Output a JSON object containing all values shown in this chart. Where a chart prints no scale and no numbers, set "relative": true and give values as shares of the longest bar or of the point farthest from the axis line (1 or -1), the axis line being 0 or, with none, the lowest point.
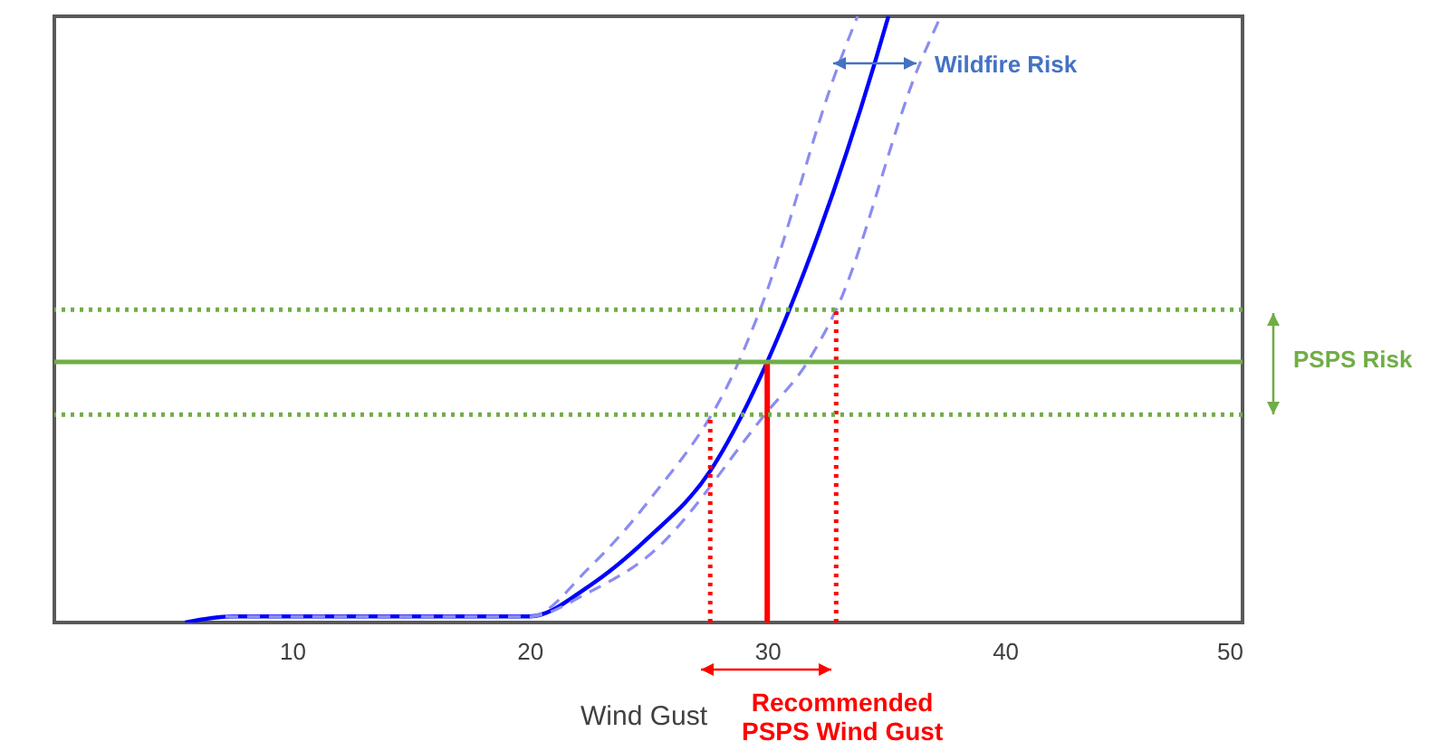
{
  "chart_data": {
    "type": "line",
    "xlabel": "Wind Gust",
    "relative": true,
    "xlim": [
      0,
      50
    ],
    "xticks": [
      10,
      20,
      30,
      40,
      50
    ],
    "grid": false,
    "marker": "none",
    "series": [
      {
        "color": "#0000ff",
        "line_style": "solid",
        "x": [
          5.5,
          7.5,
          10,
          15,
          20,
          22.5,
          25,
          27.6,
          30,
          30.9,
          34.5,
          35.1
        ],
        "values": [
          0,
          0.01,
          0.01,
          0.01,
          0.01,
          0.06,
          0.14,
          0.25,
          0.43,
          0.513,
          0.92,
          1
        ]
      },
      {
        "color": "#8c8cf0",
        "line_style": "dashed",
        "x": [
          7.2,
          10,
          15,
          20,
          22.5,
          25,
          28.8,
          29.7,
          33.0,
          33.8
        ],
        "values": [
          0.01,
          0.01,
          0.01,
          0.01,
          0.09,
          0.2,
          0.43,
          0.516,
          0.92,
          1
        ]
      },
      {
        "color": "#8c8cf0",
        "line_style": "dashed",
        "x": [
          7.2,
          10,
          15,
          20,
          22.5,
          25,
          29.9,
          31.7,
          32.9,
          36.4,
          37.3
        ],
        "values": [
          0.01,
          0.01,
          0.01,
          0.01,
          0.05,
          0.11,
          0.343,
          0.43,
          0.516,
          0.92,
          1
        ]
      },
      {
        "color": "#ff0000",
        "line_style": "solid",
        "x": [
          30,
          30
        ],
        "values": [
          0,
          0.43
        ]
      },
      {
        "color": "#ff0000",
        "line_style": "dotted",
        "x": [
          27.6,
          27.6
        ],
        "values": [
          0,
          0.343
        ]
      },
      {
        "color": "#ff0000",
        "line_style": "dotted",
        "x": [
          32.9,
          32.9
        ],
        "values": [
          0,
          0.516
        ]
      }
    ],
    "ref_lines": [
      {
        "axis": "y",
        "value": 0.43,
        "color": "#70ad47",
        "line_style": "solid"
      },
      {
        "axis": "y",
        "value": 0.516,
        "color": "#70ad47",
        "line_style": "dotted"
      },
      {
        "axis": "y",
        "value": 0.343,
        "color": "#70ad47",
        "line_style": "dotted"
      }
    ],
    "annotations": [
      "Wildfire Risk",
      "PSPS Risk",
      "Recommended PSPS Wind Gust"
    ]
  }
}
